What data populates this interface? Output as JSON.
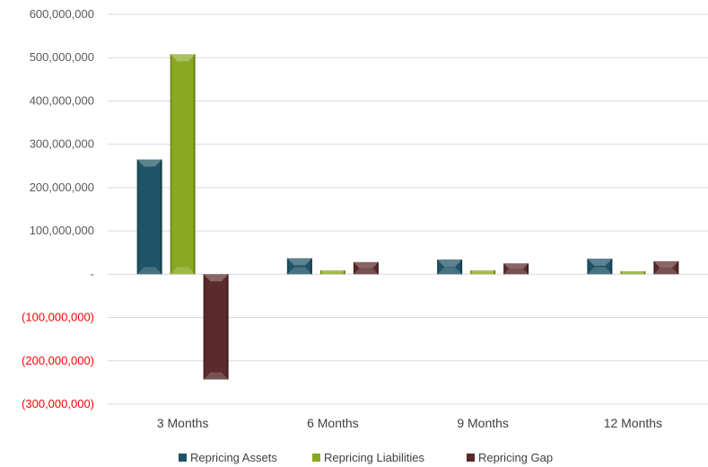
{
  "chart_data": {
    "type": "bar",
    "categories": [
      "3 Months",
      "6 Months",
      "9 Months",
      "12 Months"
    ],
    "series": [
      {
        "name": "Repricing Assets",
        "values": [
          265000000,
          37000000,
          34000000,
          36000000
        ],
        "color": "#1f5366"
      },
      {
        "name": "Repricing Liabilities",
        "values": [
          508000000,
          9000000,
          9000000,
          7000000
        ],
        "color": "#8aa824"
      },
      {
        "name": "Repricing Gap",
        "values": [
          -243000000,
          28000000,
          25000000,
          30000000
        ],
        "color": "#5a2a2c"
      }
    ],
    "ylim": [
      -300000000,
      600000000
    ],
    "yticks": [
      600000000,
      500000000,
      400000000,
      300000000,
      200000000,
      100000000,
      0,
      -100000000,
      -200000000,
      -300000000
    ],
    "ytick_labels": [
      "600,000,000",
      "500,000,000",
      "400,000,000",
      "300,000,000",
      "200,000,000",
      "100,000,000",
      "-",
      "(100,000,000)",
      "(200,000,000)",
      "(300,000,000)"
    ],
    "negative_label_color": "#ff0000",
    "grid": true,
    "legend": "bottom",
    "title": "",
    "xlabel": "",
    "ylabel": ""
  }
}
